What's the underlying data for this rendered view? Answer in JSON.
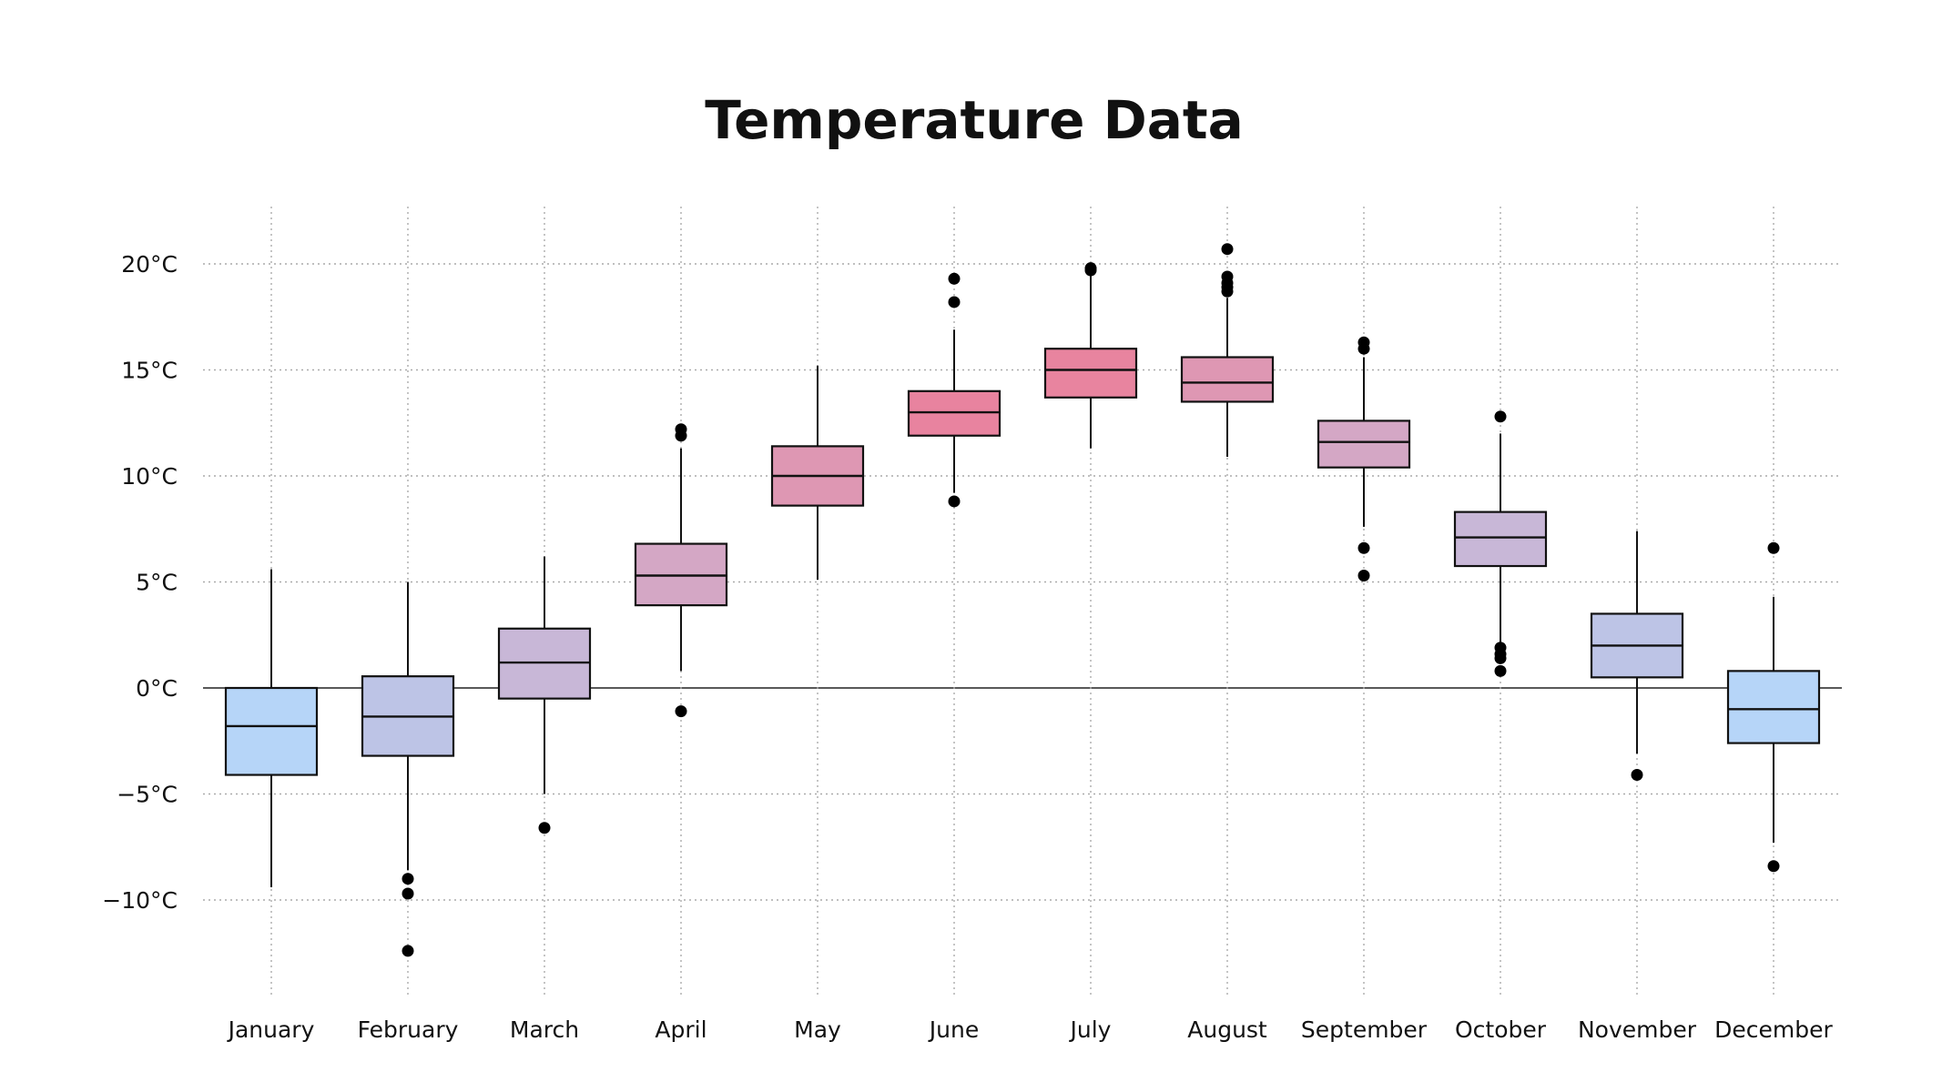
{
  "chart_data": {
    "type": "box",
    "title": "Temperature Data",
    "xlabel": "",
    "ylabel": "",
    "ylim": [
      -14.5,
      22.7
    ],
    "yticks": [
      20,
      15,
      10,
      5,
      0,
      -5,
      -10
    ],
    "ytick_labels": [
      "20°C",
      "15°C",
      "10°C",
      "5°C",
      "0°C",
      "−5°C",
      "−10°C"
    ],
    "grid": true,
    "categories": [
      "January",
      "February",
      "March",
      "April",
      "May",
      "June",
      "July",
      "August",
      "September",
      "October",
      "November",
      "December"
    ],
    "boxes": [
      {
        "low": -9.4,
        "q1": -4.1,
        "median": -1.8,
        "q3": 0.0,
        "high": 5.6,
        "outliers": [],
        "color": "#b6d5f8"
      },
      {
        "low": -8.6,
        "q1": -3.2,
        "median": -1.35,
        "q3": 0.55,
        "high": 5.0,
        "outliers": [
          -9.0,
          -9.7,
          -12.4
        ],
        "color": "#bdc4e6"
      },
      {
        "low": -5.0,
        "q1": -0.5,
        "median": 1.2,
        "q3": 2.8,
        "high": 6.2,
        "outliers": [
          -6.6
        ],
        "color": "#c8b7d7"
      },
      {
        "low": 0.8,
        "q1": 3.9,
        "median": 5.3,
        "q3": 6.8,
        "high": 11.3,
        "outliers": [
          12.2,
          11.9,
          -1.1
        ],
        "color": "#d4a7c5"
      },
      {
        "low": 5.1,
        "q1": 8.6,
        "median": 10.0,
        "q3": 11.4,
        "high": 15.2,
        "outliers": [],
        "color": "#de97b3"
      },
      {
        "low": 9.2,
        "q1": 11.9,
        "median": 13.0,
        "q3": 14.0,
        "high": 16.9,
        "outliers": [
          19.3,
          18.2,
          8.8
        ],
        "color": "#e8839f"
      },
      {
        "low": 11.3,
        "q1": 13.7,
        "median": 15.0,
        "q3": 16.0,
        "high": 19.6,
        "outliers": [
          19.8,
          19.7
        ],
        "color": "#e8849f"
      },
      {
        "low": 10.9,
        "q1": 13.5,
        "median": 14.4,
        "q3": 15.6,
        "high": 18.4,
        "outliers": [
          20.7,
          19.4,
          19.1,
          18.9,
          18.7
        ],
        "color": "#de97b3"
      },
      {
        "low": 7.6,
        "q1": 10.4,
        "median": 11.6,
        "q3": 12.6,
        "high": 15.6,
        "outliers": [
          16.3,
          16.0,
          6.6,
          5.3
        ],
        "color": "#d4a7c5"
      },
      {
        "low": 2.0,
        "q1": 5.75,
        "median": 7.1,
        "q3": 8.3,
        "high": 12.0,
        "outliers": [
          12.8,
          1.9,
          1.6,
          1.4,
          0.8
        ],
        "color": "#c8b7d7"
      },
      {
        "low": -3.1,
        "q1": 0.5,
        "median": 2.0,
        "q3": 3.5,
        "high": 7.4,
        "outliers": [
          -4.1
        ],
        "color": "#bdc4e6"
      },
      {
        "low": -7.3,
        "q1": -2.6,
        "median": -1.0,
        "q3": 0.8,
        "high": 4.3,
        "outliers": [
          6.6,
          -8.4
        ],
        "color": "#b6d5f8"
      }
    ]
  }
}
